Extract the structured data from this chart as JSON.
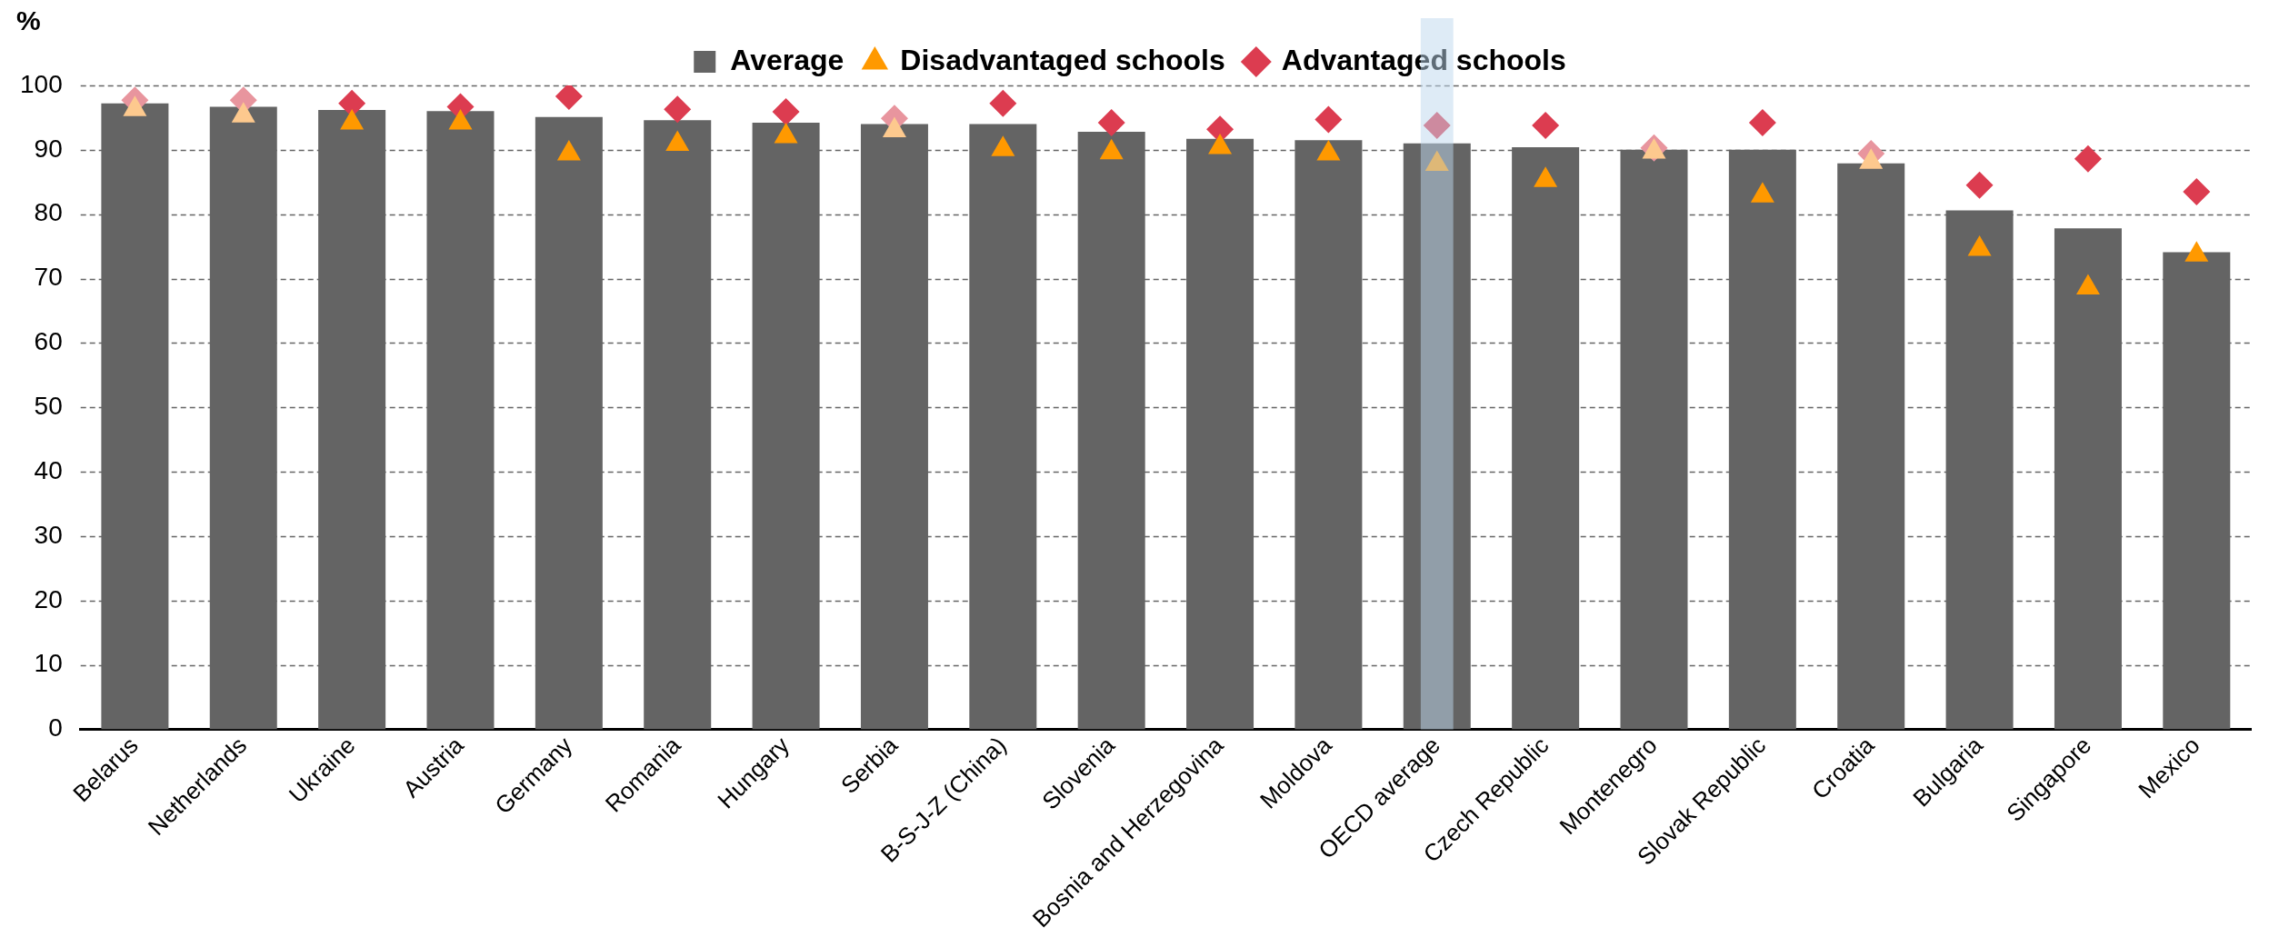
{
  "chart_data": {
    "type": "bar",
    "ylabel": "%",
    "categories": [
      "Belarus",
      "Netherlands",
      "Ukraine",
      "Austria",
      "Germany",
      "Romania",
      "Hungary",
      "Serbia",
      "B-S-J-Z (China)",
      "Slovenia",
      "Bosnia and Herzegovina",
      "Moldova",
      "OECD average",
      "Czech Republic",
      "Montenegro",
      "Slovak Republic",
      "Croatia",
      "Bulgaria",
      "Singapore",
      "Mexico"
    ],
    "series": [
      {
        "name": "Average",
        "color": "#646464",
        "values": [
          97.2,
          96.7,
          96.2,
          96.0,
          95.1,
          94.6,
          94.2,
          94.0,
          94.0,
          92.8,
          91.7,
          91.5,
          91.0,
          90.4,
          90.0,
          90.0,
          87.9,
          80.6,
          77.8,
          74.1
        ]
      },
      {
        "name": "Disadvantaged schools",
        "type": "scatter",
        "marker": "triangle",
        "color": "#ff9900",
        "colors": [
          "#fdc98e",
          "#fdc98e",
          "#ff9900",
          "#ff9900",
          "#ff9900",
          "#ff9900",
          "#ff9900",
          "#fdc98e",
          "#ff9900",
          "#ff9900",
          "#ff9900",
          "#ff9900",
          "#ff9900",
          "#ff9900",
          "#fdc98e",
          "#ff9900",
          "#fdc98e",
          "#ff9900",
          "#ff9900",
          "#ff9900"
        ],
        "values": [
          96.3,
          95.3,
          94.2,
          94.2,
          89.4,
          90.9,
          92.1,
          93.0,
          90.1,
          89.6,
          90.4,
          89.4,
          87.8,
          85.3,
          89.7,
          82.9,
          88.1,
          74.6,
          68.6,
          73.7
        ]
      },
      {
        "name": "Advantaged schools",
        "type": "scatter",
        "marker": "diamond",
        "color": "#dc3c50",
        "colors": [
          "#e8959e",
          "#e8959e",
          "#dc3c50",
          "#dc3c50",
          "#dc3c50",
          "#dc3c50",
          "#dc3c50",
          "#e8959e",
          "#dc3c50",
          "#dc3c50",
          "#dc3c50",
          "#dc3c50",
          "#dc3c50",
          "#dc3c50",
          "#e8959e",
          "#dc3c50",
          "#e8959e",
          "#dc3c50",
          "#dc3c50",
          "#dc3c50"
        ],
        "values": [
          97.7,
          97.7,
          97.2,
          96.7,
          98.3,
          96.3,
          95.9,
          94.9,
          97.2,
          94.2,
          93.2,
          94.7,
          93.8,
          93.8,
          90.3,
          94.2,
          89.4,
          84.5,
          88.6,
          83.5
        ]
      }
    ],
    "ylim": [
      0,
      100
    ],
    "yticks": [
      0,
      10,
      20,
      30,
      40,
      50,
      60,
      70,
      80,
      90,
      100
    ],
    "grid": "y",
    "legend": "top",
    "bands": [
      {
        "axis": "x",
        "from": "OECD average",
        "to": "OECD average",
        "color": "#bdd7ee"
      }
    ]
  }
}
